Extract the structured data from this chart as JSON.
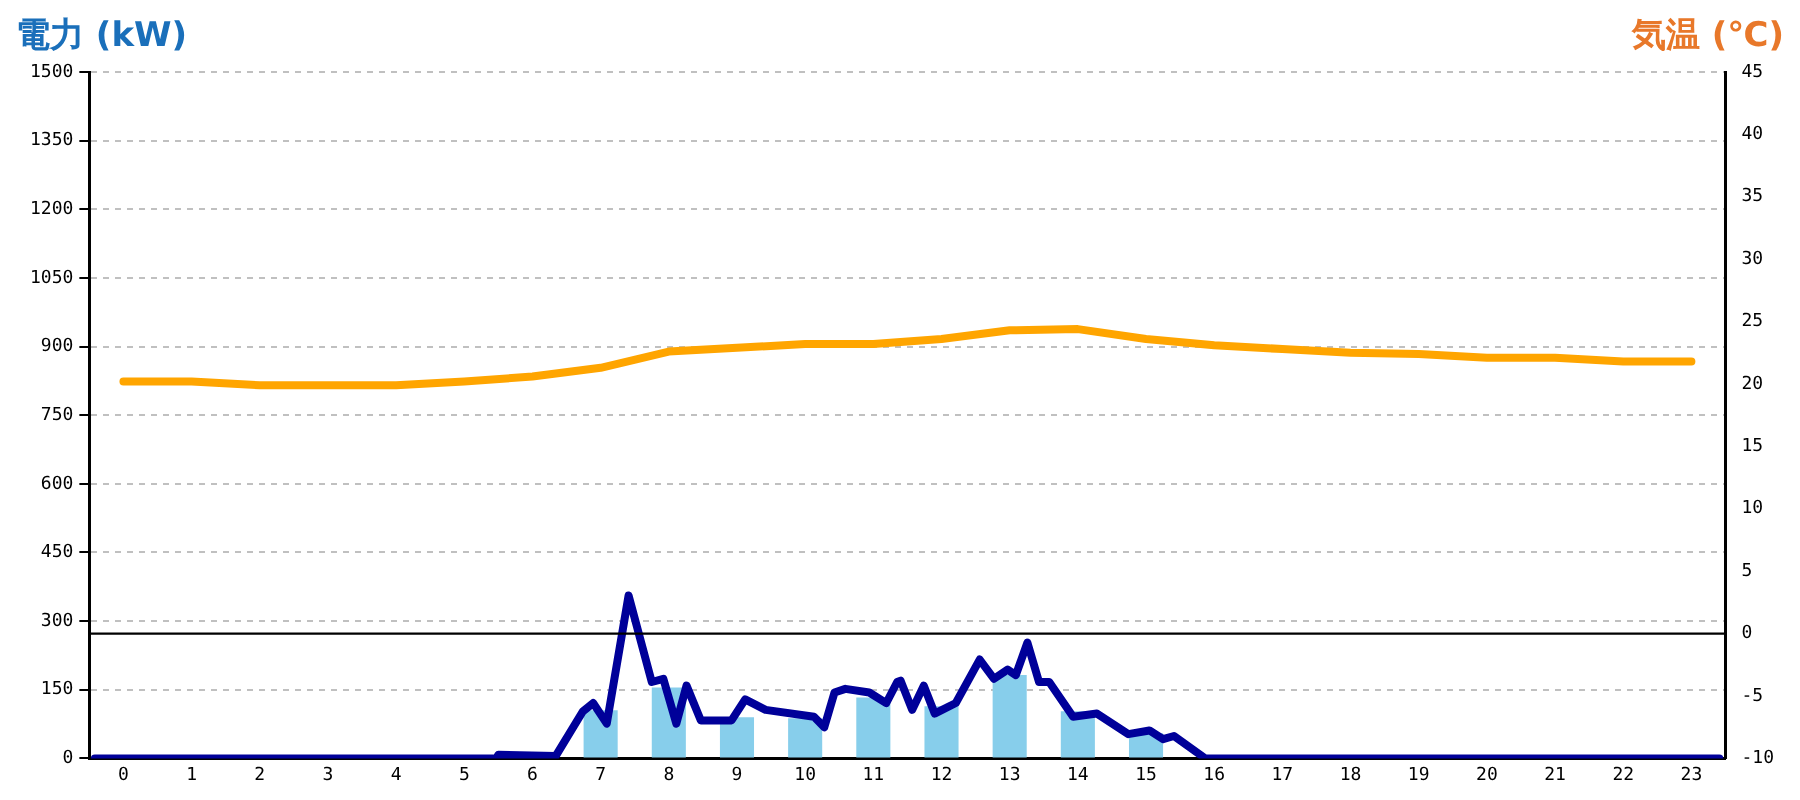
{
  "chart_data": {
    "type": "bar",
    "ylabel": "電力 (kW)",
    "y2label": "気温 (℃)",
    "x": [
      0,
      1,
      2,
      3,
      4,
      5,
      6,
      7,
      8,
      9,
      10,
      11,
      12,
      13,
      14,
      15,
      16,
      17,
      18,
      19,
      20,
      21,
      22,
      23
    ],
    "xlim": [
      -0.5,
      23.5
    ],
    "xticks": [
      0,
      1,
      2,
      3,
      4,
      5,
      6,
      7,
      8,
      9,
      10,
      11,
      12,
      13,
      14,
      15,
      16,
      17,
      18,
      19,
      20,
      21,
      22,
      23
    ],
    "series": [
      {
        "color": "#87ceeb",
        "values": [
          0,
          0,
          0,
          0,
          0,
          0,
          5,
          105,
          155,
          90,
          88,
          133,
          114,
          182,
          103,
          55,
          0,
          0,
          0,
          0,
          0,
          0,
          0,
          0
        ]
      },
      {
        "type": "line",
        "color": "#000099",
        "x": [
          -0.42,
          5.47,
          5.5,
          6.34,
          6.74,
          6.89,
          7.09,
          7.41,
          7.75,
          7.92,
          8.11,
          8.26,
          8.47,
          8.92,
          9.12,
          9.42,
          10.13,
          10.28,
          10.43,
          10.59,
          10.94,
          11.19,
          11.35,
          11.4,
          11.57,
          11.74,
          11.9,
          12.21,
          12.56,
          12.77,
          12.97,
          13.09,
          13.26,
          13.43,
          13.58,
          13.93,
          14.28,
          14.74,
          15.05,
          15.25,
          15.41,
          15.87,
          23.41
        ],
        "values": [
          0,
          0,
          8,
          5,
          103,
          121,
          76,
          356,
          167,
          174,
          76,
          159,
          83,
          83,
          129,
          106,
          91,
          68,
          144,
          152,
          144,
          121,
          167,
          170,
          106,
          159,
          98,
          121,
          216,
          174,
          194,
          182,
          253,
          167,
          167,
          91,
          98,
          53,
          61,
          42,
          49,
          0,
          0
        ]
      },
      {
        "type": "line",
        "color": "#ffa500",
        "axis": "y2",
        "values": [
          20.2,
          20.2,
          19.9,
          19.9,
          19.9,
          20.2,
          20.6,
          21.3,
          22.6,
          22.9,
          23.2,
          23.2,
          23.6,
          24.3,
          24.4,
          23.6,
          23.1,
          22.8,
          22.5,
          22.4,
          22.1,
          22.1,
          21.8,
          21.8
        ]
      }
    ],
    "ylim": [
      0,
      1500
    ],
    "yticks": [
      0,
      150,
      300,
      450,
      600,
      750,
      900,
      1050,
      1200,
      1350,
      1500
    ],
    "y2lim": [
      -10,
      45
    ],
    "y2ticks": [
      -10,
      -5,
      0,
      5,
      10,
      15,
      20,
      25,
      30,
      35,
      40,
      45
    ],
    "ref_lines": [
      {
        "axis": "y2",
        "value": 0,
        "color": "#000000"
      }
    ],
    "grid": "y",
    "legend": false
  }
}
